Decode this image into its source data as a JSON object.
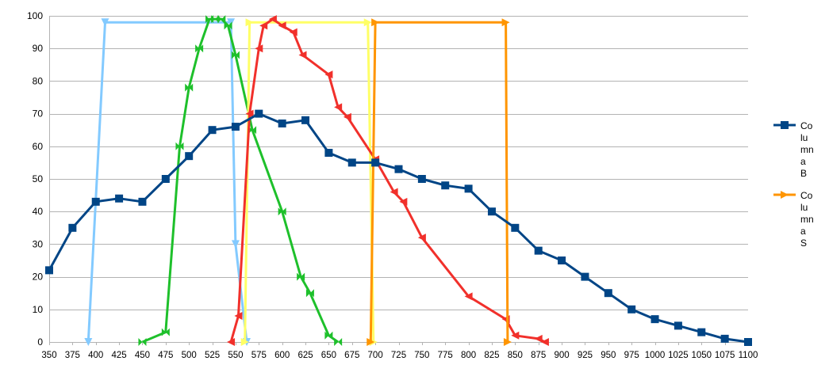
{
  "chart_data": {
    "type": "line",
    "title": "",
    "xlabel": "",
    "ylabel": "",
    "xlim": [
      350,
      1100
    ],
    "ylim": [
      0,
      100
    ],
    "x_ticks": [
      350,
      375,
      400,
      425,
      450,
      475,
      500,
      525,
      550,
      575,
      600,
      625,
      650,
      675,
      700,
      725,
      750,
      775,
      800,
      825,
      850,
      875,
      900,
      925,
      950,
      975,
      1000,
      1025,
      1050,
      1075,
      1100
    ],
    "y_ticks": [
      0,
      10,
      20,
      30,
      40,
      50,
      60,
      70,
      80,
      90,
      100
    ],
    "grid": "horizontal",
    "legend_position": "right",
    "series": [
      {
        "key": "light-blue",
        "name": "",
        "color": "#83caff",
        "marker": "triangle-down",
        "in_legend": false,
        "points": [
          [
            392,
            0
          ],
          [
            410,
            98
          ],
          [
            545,
            98
          ],
          [
            550,
            30
          ],
          [
            562,
            0
          ]
        ]
      },
      {
        "key": "green",
        "name": "",
        "color": "#1ec02b",
        "marker": "bowtie",
        "in_legend": false,
        "points": [
          [
            450,
            0
          ],
          [
            475,
            3
          ],
          [
            490,
            60
          ],
          [
            500,
            78
          ],
          [
            511,
            90
          ],
          [
            522,
            99
          ],
          [
            528,
            99
          ],
          [
            535,
            99
          ],
          [
            542,
            97
          ],
          [
            550,
            88
          ],
          [
            568,
            65
          ],
          [
            600,
            40
          ],
          [
            620,
            20
          ],
          [
            630,
            15
          ],
          [
            650,
            2
          ],
          [
            660,
            0
          ]
        ]
      },
      {
        "key": "yellow",
        "name": "",
        "color": "#ffff66",
        "marker": "triangle-right",
        "in_legend": false,
        "points": [
          [
            560,
            0
          ],
          [
            565,
            98
          ],
          [
            692,
            98
          ],
          [
            698,
            0
          ]
        ]
      },
      {
        "key": "red",
        "name": "",
        "color": "#f1302b",
        "marker": "triangle-left",
        "in_legend": false,
        "points": [
          [
            545,
            0
          ],
          [
            553,
            8
          ],
          [
            565,
            70
          ],
          [
            575,
            90
          ],
          [
            580,
            97
          ],
          [
            590,
            99
          ],
          [
            600,
            97
          ],
          [
            612,
            95
          ],
          [
            622,
            88
          ],
          [
            650,
            82
          ],
          [
            660,
            72
          ],
          [
            670,
            69
          ],
          [
            700,
            56
          ],
          [
            720,
            46
          ],
          [
            730,
            43
          ],
          [
            750,
            32
          ],
          [
            800,
            14
          ],
          [
            840,
            7
          ],
          [
            850,
            2
          ],
          [
            875,
            1
          ],
          [
            882,
            0
          ]
        ]
      },
      {
        "key": "orange",
        "name": "Columna S",
        "color": "#ff9501",
        "marker": "triangle-right",
        "in_legend": true,
        "points": [
          [
            695,
            0
          ],
          [
            700,
            98
          ],
          [
            840,
            98
          ],
          [
            842,
            0
          ]
        ]
      },
      {
        "key": "navy",
        "name": "Columna B",
        "color": "#004586",
        "marker": "square",
        "in_legend": true,
        "points": [
          [
            350,
            22
          ],
          [
            375,
            35
          ],
          [
            400,
            43
          ],
          [
            425,
            44
          ],
          [
            450,
            43
          ],
          [
            475,
            50
          ],
          [
            500,
            57
          ],
          [
            525,
            65
          ],
          [
            550,
            66
          ],
          [
            575,
            70
          ],
          [
            600,
            67
          ],
          [
            625,
            68
          ],
          [
            650,
            58
          ],
          [
            675,
            55
          ],
          [
            700,
            55
          ],
          [
            725,
            53
          ],
          [
            750,
            50
          ],
          [
            775,
            48
          ],
          [
            800,
            47
          ],
          [
            825,
            40
          ],
          [
            850,
            35
          ],
          [
            875,
            28
          ],
          [
            900,
            25
          ],
          [
            925,
            20
          ],
          [
            950,
            15
          ],
          [
            975,
            10
          ],
          [
            1000,
            7
          ],
          [
            1025,
            5
          ],
          [
            1050,
            3
          ],
          [
            1075,
            1
          ],
          [
            1100,
            0
          ]
        ]
      }
    ],
    "legend": [
      {
        "series_key": "navy",
        "label_lines": [
          "Co",
          "lu",
          "mn",
          "a",
          "B"
        ]
      },
      {
        "series_key": "orange",
        "label_lines": [
          "Co",
          "lu",
          "mn",
          "a",
          "S"
        ]
      }
    ]
  }
}
